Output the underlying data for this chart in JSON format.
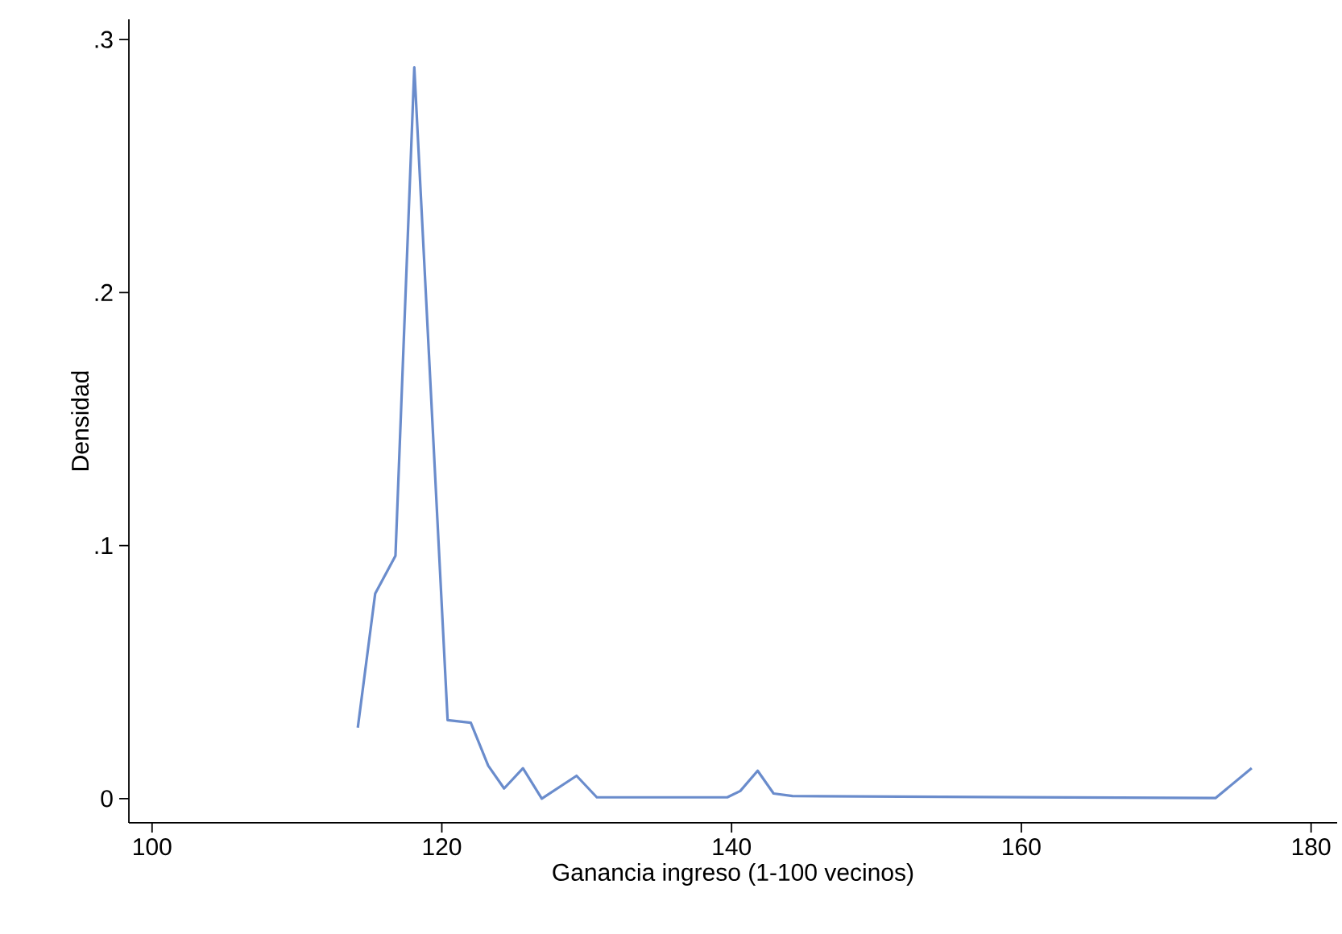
{
  "chart_data": {
    "type": "line",
    "xlabel": "Ganancia ingreso (1-100 vecinos)",
    "ylabel": "Densidad",
    "x": [
      114.2,
      115.4,
      116.8,
      118.1,
      120.4,
      122.0,
      123.2,
      124.3,
      125.6,
      126.9,
      129.3,
      130.7,
      139.7,
      140.6,
      141.8,
      142.9,
      144.2,
      173.4,
      175.9
    ],
    "series": [
      {
        "color": "#6a8ccc",
        "values": [
          0.028,
          0.081,
          0.096,
          0.289,
          0.031,
          0.03,
          0.013,
          0.004,
          0.012,
          0.0,
          0.009,
          0.0005,
          0.0005,
          0.003,
          0.011,
          0.002,
          0.001,
          0.0002,
          0.012
        ]
      }
    ],
    "xlim": [
      98.4,
      181.8
    ],
    "ylim": [
      -0.0096,
      0.308
    ],
    "xticks": [
      100,
      120,
      140,
      160,
      180
    ],
    "yticks": [
      {
        "value": 0,
        "label": "0"
      },
      {
        "value": 0.1,
        "label": ".1"
      },
      {
        "value": 0.2,
        "label": ".2"
      },
      {
        "value": 0.3,
        "label": ".3"
      }
    ],
    "grid": false,
    "marker": "none",
    "line_style": "solid"
  }
}
